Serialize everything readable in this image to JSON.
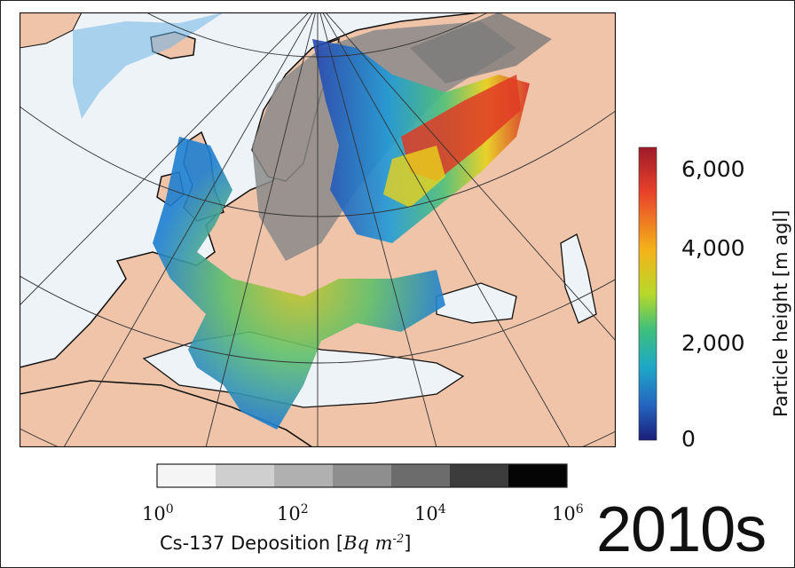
{
  "map": {
    "region": "Europe",
    "colors": {
      "ocean": "#eef3f8",
      "land": "#f0c4a8",
      "coast": "#111111",
      "graticule": "#333333",
      "deposition_gray": "#8a8a8a"
    }
  },
  "colorbar_height": {
    "label": "Particle height [m agl]",
    "ticks": [
      "6,000",
      "4,000",
      "2,000",
      "0"
    ],
    "tick_values": [
      6000,
      4000,
      2000,
      0
    ],
    "colors": [
      "#b3202a",
      "#e8402a",
      "#f7a21b",
      "#e8e21b",
      "#7fcf3f",
      "#2bb79a",
      "#1e88d8",
      "#2545b0",
      "#1a1f7a"
    ]
  },
  "colorbar_deposition": {
    "label_prefix": "Cs-137 Deposition [",
    "label_unit": "Bq m",
    "label_exp": "-2",
    "label_suffix": "]",
    "ticks": [
      {
        "base": "10",
        "exp": "0"
      },
      {
        "base": "10",
        "exp": "2"
      },
      {
        "base": "10",
        "exp": "4"
      },
      {
        "base": "10",
        "exp": "6"
      }
    ],
    "steps": [
      "#f5f5f5",
      "#cfcfcf",
      "#b0b0b0",
      "#8e8e8e",
      "#6c6c6c",
      "#3c3c3c",
      "#050505"
    ]
  },
  "decade_label": "2010s"
}
